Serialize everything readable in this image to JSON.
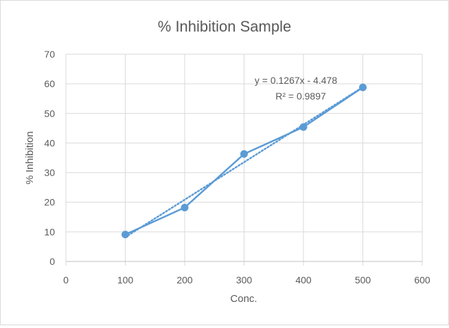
{
  "chart_data": {
    "type": "scatter",
    "title": "% Inhibition Sample",
    "xlabel": "Conc.",
    "ylabel": "% Inhibition",
    "xlim": [
      0,
      600
    ],
    "ylim": [
      0,
      70
    ],
    "x_ticks": [
      0,
      100,
      200,
      300,
      400,
      500,
      600
    ],
    "y_ticks": [
      0,
      10,
      20,
      30,
      40,
      50,
      60,
      70
    ],
    "grid": true,
    "legend": "none",
    "series": [
      {
        "x": [
          100,
          200,
          300,
          400,
          500
        ],
        "y": [
          9.1,
          18.2,
          36.3,
          45.4,
          58.8
        ],
        "color": "#5b9bd5",
        "mode": "lines+markers"
      }
    ],
    "trendline": {
      "kind": "linear",
      "slope": 0.1267,
      "intercept": -4.478,
      "x_range": [
        100,
        500
      ],
      "color": "#5b9bd5",
      "style": "dotted",
      "equation_label": "y = 0.1267x - 4.478",
      "r2_label": "R² = 0.9897"
    },
    "colors": {
      "gridline": "#d9d9d9",
      "text": "#595959"
    }
  }
}
